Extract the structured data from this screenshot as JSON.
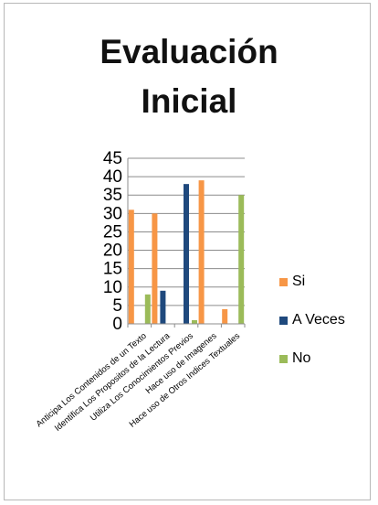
{
  "chart_data": {
    "type": "bar",
    "title": "Evaluación\nInicial",
    "categories": [
      "Anticipa Los Contenidos  de un Texto",
      "Identifica Los Propositos  de la Lectura",
      "Utiliza Los Conocimientos  Previos",
      "Hace uso de Imagenes",
      "Hace uso de Otros Indices Textuales"
    ],
    "series": [
      {
        "name": "Si",
        "color": "#F79646",
        "values": [
          31,
          30,
          0,
          39,
          4
        ]
      },
      {
        "name": "A Veces",
        "color": "#1F497D",
        "values": [
          0,
          9,
          38,
          0,
          0
        ]
      },
      {
        "name": "No",
        "color": "#9BBB59",
        "values": [
          8,
          0,
          1,
          0,
          35
        ]
      }
    ],
    "ylim": [
      0,
      45
    ],
    "yticks": [
      0,
      5,
      10,
      15,
      20,
      25,
      30,
      35,
      40,
      45
    ],
    "grid": true,
    "legend_position": "right"
  }
}
